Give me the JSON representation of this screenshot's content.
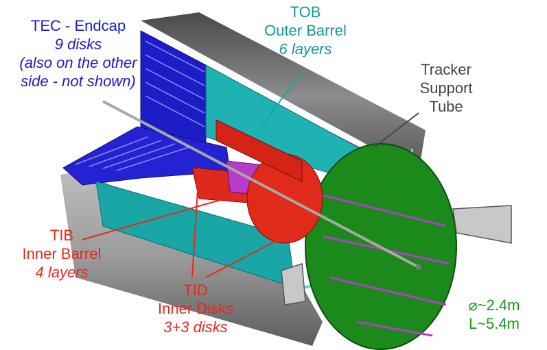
{
  "labels": {
    "tec": {
      "title": "TEC - Endcap",
      "count": "9 disks",
      "note_line1": "(also on the other",
      "note_line2": "side - not shown)"
    },
    "tob": {
      "title": "TOB",
      "subtitle": "Outer Barrel",
      "count": "6 layers"
    },
    "support": {
      "line1": "Tracker",
      "line2": "Support",
      "line3": "Tube"
    },
    "tib": {
      "title": "TIB",
      "subtitle": "Inner Barrel",
      "count": "4 layers"
    },
    "tid": {
      "title": "TID",
      "subtitle": "Inner Disks",
      "count": "3+3 disks"
    },
    "dimensions": {
      "diameter": "⌀~2.4m",
      "length": "L~5.4m"
    }
  },
  "colors": {
    "tec": "#1a1ad6",
    "tob": "#17a5a5",
    "tib": "#e8281a",
    "support_tube": "#8a8a8a",
    "end_flange": "#1b8a1b",
    "inner_magenta": "#b43cc8"
  }
}
